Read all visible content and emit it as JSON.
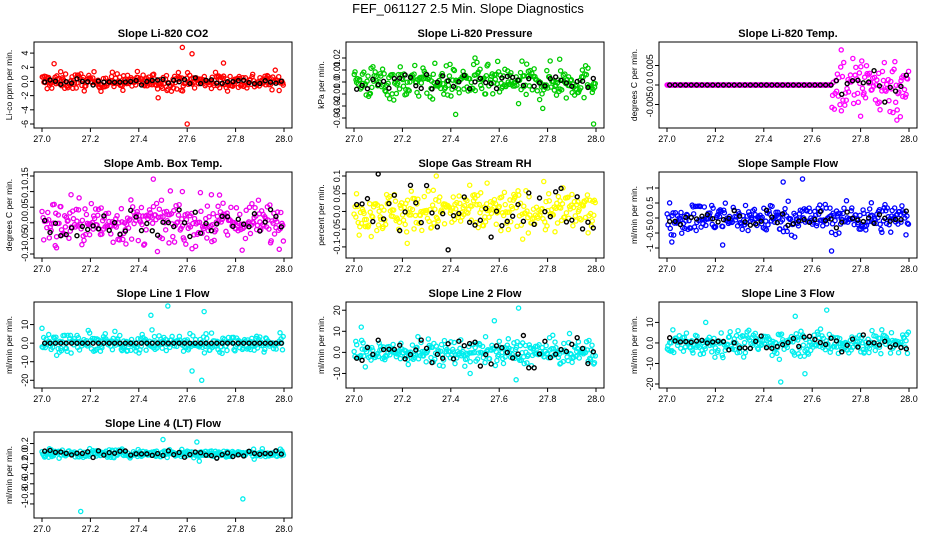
{
  "figure": {
    "title": "FEF_061127  2.5 Min. Slope Diagnostics"
  },
  "chart_data": [
    {
      "type": "scatter",
      "title": "Slope Li-820 CO2",
      "ylabel": "Li-co ppm per min.",
      "color": "#ff0000",
      "xlim": [
        27.0,
        28.0
      ],
      "ylim": [
        -6,
        5
      ],
      "yticks": [
        -6,
        -4,
        -2,
        0,
        2,
        4
      ],
      "xticks": [
        "27.0",
        "27.2",
        "27.4",
        "27.6",
        "27.8",
        "28.0"
      ],
      "series": [
        {
          "spread": 0.6,
          "outliers": [
            [
              27.05,
              2.5
            ],
            [
              27.58,
              4.8
            ],
            [
              27.6,
              -6.0
            ],
            [
              27.62,
              3.9
            ],
            [
              27.48,
              -2.3
            ],
            [
              27.75,
              2.6
            ]
          ]
        },
        {
          "color": "#000000",
          "spread": 0.2
        }
      ]
    },
    {
      "type": "scatter",
      "title": "Slope Li-820 Pressure",
      "ylabel": "kPa per min.",
      "color": "#00cc00",
      "xlim": [
        27.0,
        28.0
      ],
      "ylim": [
        -0.035,
        0.03
      ],
      "yticks": [
        -0.03,
        -0.02,
        -0.01,
        0.0,
        0.01,
        0.02
      ],
      "xticks": [
        "27.0",
        "27.2",
        "27.4",
        "27.6",
        "27.8",
        "28.0"
      ],
      "series": [
        {
          "spread": 0.007,
          "outliers": [
            [
              27.42,
              -0.027
            ],
            [
              27.68,
              -0.018
            ],
            [
              27.78,
              -0.022
            ],
            [
              27.99,
              -0.035
            ],
            [
              27.5,
              0.02
            ],
            [
              27.85,
              0.019
            ]
          ]
        },
        {
          "color": "#000000",
          "spread": 0.004
        }
      ]
    },
    {
      "type": "scatter",
      "title": "Slope Li-820 Temp.",
      "ylabel": "degrees C per min.",
      "color": "#ff00ff",
      "xlim": [
        27.0,
        28.0
      ],
      "ylim": [
        -0.01,
        0.01
      ],
      "yticks": [
        -0.005,
        0.0,
        0.005
      ],
      "xticks": [
        "27.0",
        "27.2",
        "27.4",
        "27.6",
        "27.8",
        "28.0"
      ],
      "series": [
        {
          "spread": 0.0,
          "late_x": 27.68,
          "late_spread": 0.004,
          "outliers": [
            [
              27.72,
              0.009
            ],
            [
              27.95,
              -0.009
            ],
            [
              27.8,
              -0.008
            ]
          ]
        },
        {
          "color": "#000000",
          "spread": 0.0,
          "late_x": 27.7,
          "late_spread": 0.003
        }
      ]
    },
    {
      "type": "scatter",
      "title": "Slope Amb. Box Temp.",
      "ylabel": "degrees C per min.",
      "color": "#ee00ee",
      "xlim": [
        27.0,
        28.0
      ],
      "ylim": [
        -0.1,
        0.15
      ],
      "yticks": [
        -0.1,
        -0.05,
        0.0,
        0.05,
        0.1,
        0.15
      ],
      "xticks": [
        "27.0",
        "27.2",
        "27.4",
        "27.6",
        "27.8",
        "28.0"
      ],
      "series": [
        {
          "spread": 0.035,
          "outliers": [
            [
              27.46,
              0.14
            ],
            [
              27.12,
              0.09
            ],
            [
              27.58,
              0.1
            ],
            [
              27.7,
              0.09
            ],
            [
              27.06,
              -0.08
            ]
          ]
        },
        {
          "color": "#000000",
          "spread": 0.02
        }
      ]
    },
    {
      "type": "scatter",
      "title": "Slope Gas Stream RH",
      "ylabel": "percent per min.",
      "color": "#ffff00",
      "xlim": [
        27.0,
        28.0
      ],
      "ylim": [
        -0.12,
        0.1
      ],
      "yticks": [
        -0.1,
        -0.05,
        0.0,
        0.05,
        0.1
      ],
      "xticks": [
        "27.0",
        "27.2",
        "27.4",
        "27.6",
        "27.8",
        "28.0"
      ],
      "series": [
        {
          "spread": 0.03,
          "outliers": [
            [
              27.34,
              0.1
            ],
            [
              27.55,
              0.08
            ],
            [
              27.22,
              -0.09
            ]
          ]
        },
        {
          "color": "#000000",
          "spread": 0.04
        }
      ]
    },
    {
      "type": "scatter",
      "title": "Slope Sample Flow",
      "ylabel": "ml/min per min.",
      "color": "#0000ff",
      "xlim": [
        27.0,
        28.0
      ],
      "ylim": [
        -1.2,
        1.4
      ],
      "yticks": [
        -1.0,
        -0.5,
        0.0,
        0.5,
        1.0
      ],
      "xticks": [
        "27.0",
        "27.2",
        "27.4",
        "27.6",
        "27.8",
        "28.0"
      ],
      "series": [
        {
          "spread": 0.25,
          "outliers": [
            [
              27.68,
              -1.1
            ],
            [
              27.48,
              1.2
            ],
            [
              27.56,
              1.3
            ],
            [
              27.23,
              -0.9
            ],
            [
              27.02,
              -0.8
            ]
          ]
        },
        {
          "color": "#000000",
          "spread": 0.15
        }
      ]
    },
    {
      "type": "scatter",
      "title": "Slope Line 1 Flow",
      "ylabel": "ml/min per min.",
      "color": "#00eeee",
      "xlim": [
        27.0,
        28.0
      ],
      "ylim": [
        -22,
        20
      ],
      "yticks": [
        -20,
        -10,
        0,
        10
      ],
      "xticks": [
        "27.0",
        "27.2",
        "27.4",
        "27.6",
        "27.8",
        "28.0"
      ],
      "series": [
        {
          "spread": 2.5,
          "outliers": [
            [
              27.45,
              15
            ],
            [
              27.52,
              20
            ],
            [
              27.62,
              -15
            ],
            [
              27.66,
              -20
            ],
            [
              27.67,
              17
            ],
            [
              27.0,
              8
            ]
          ]
        },
        {
          "color": "#000000",
          "spread": 0.0
        }
      ]
    },
    {
      "type": "scatter",
      "title": "Slope Line 2 Flow",
      "ylabel": "ml/min per min.",
      "color": "#00eeee",
      "xlim": [
        27.0,
        28.0
      ],
      "ylim": [
        -15,
        22
      ],
      "yticks": [
        -10,
        0,
        10,
        20
      ],
      "xticks": [
        "27.0",
        "27.2",
        "27.4",
        "27.6",
        "27.8",
        "28.0"
      ],
      "series": [
        {
          "spread": 3.0,
          "outliers": [
            [
              27.68,
              21
            ],
            [
              27.67,
              -13
            ],
            [
              27.03,
              12
            ],
            [
              27.58,
              15
            ],
            [
              27.48,
              -10
            ]
          ]
        },
        {
          "color": "#000000",
          "spread": 4.0
        }
      ]
    },
    {
      "type": "scatter",
      "title": "Slope Line 3 Flow",
      "ylabel": "ml/min per min.",
      "color": "#00eeee",
      "xlim": [
        27.0,
        28.0
      ],
      "ylim": [
        -20,
        18
      ],
      "yticks": [
        -20,
        -10,
        0,
        10
      ],
      "xticks": [
        "27.0",
        "27.2",
        "27.4",
        "27.6",
        "27.8",
        "28.0"
      ],
      "series": [
        {
          "spread": 3.0,
          "outliers": [
            [
              27.66,
              16
            ],
            [
              27.53,
              13
            ],
            [
              27.47,
              -19
            ],
            [
              27.57,
              -15
            ],
            [
              27.16,
              10
            ]
          ]
        },
        {
          "color": "#000000",
          "spread": 2.5
        }
      ]
    },
    {
      "type": "scatter",
      "title": "Slope Line 4 (LT) Flow",
      "ylabel": "ml/min per min.",
      "color": "#00eeee",
      "xlim": [
        27.0,
        28.0
      ],
      "ylim": [
        -1.2,
        0.35
      ],
      "yticks": [
        -1.0,
        -0.8,
        -0.6,
        -0.4,
        -0.2,
        0.0,
        0.2
      ],
      "xticks": [
        "27.0",
        "27.2",
        "27.4",
        "27.6",
        "27.8",
        "28.0"
      ],
      "series": [
        {
          "spread": 0.04,
          "outliers": [
            [
              27.16,
              -1.15
            ],
            [
              27.83,
              -0.9
            ],
            [
              27.5,
              0.28
            ],
            [
              27.64,
              0.23
            ],
            [
              27.65,
              -0.15
            ]
          ]
        },
        {
          "color": "#000000",
          "spread": 0.04
        }
      ]
    }
  ]
}
